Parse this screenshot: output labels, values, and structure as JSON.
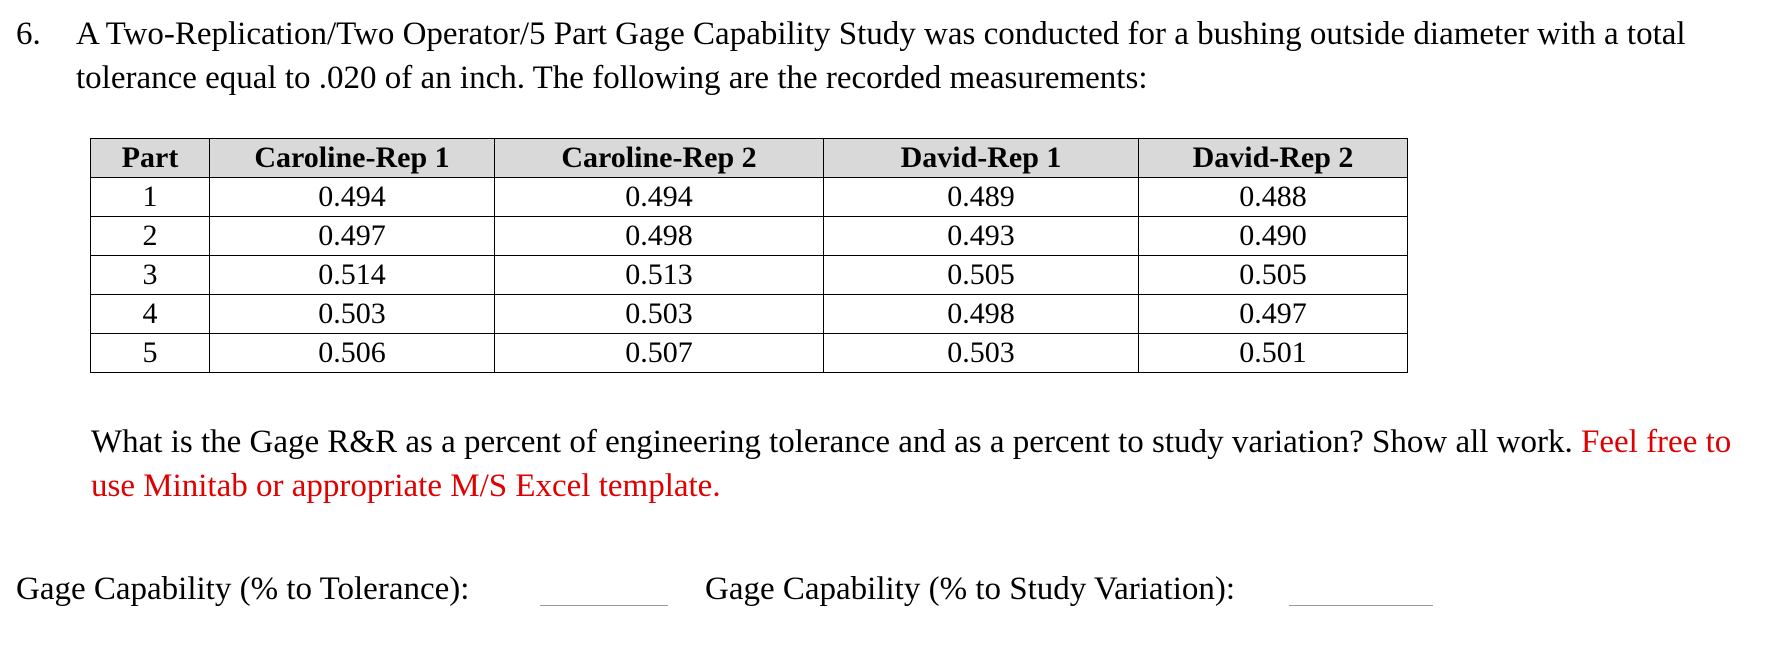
{
  "problem": {
    "number": "6.",
    "text": "A Two-Replication/Two Operator/5 Part Gage Capability Study was conducted for a bushing outside diameter with a total tolerance equal to .020 of an inch.  The following are the recorded measurements:"
  },
  "table": {
    "headers": [
      "Part",
      "Caroline-Rep 1",
      "Caroline-Rep 2",
      "David-Rep 1",
      "David-Rep 2"
    ],
    "rows": [
      [
        "1",
        "0.494",
        "0.494",
        "0.489",
        "0.488"
      ],
      [
        "2",
        "0.497",
        "0.498",
        "0.493",
        "0.490"
      ],
      [
        "3",
        "0.514",
        "0.513",
        "0.505",
        "0.505"
      ],
      [
        "4",
        "0.503",
        "0.503",
        "0.498",
        "0.497"
      ],
      [
        "5",
        "0.506",
        "0.507",
        "0.503",
        "0.501"
      ]
    ]
  },
  "question": {
    "text": "What is the Gage R&R as a percent of engineering tolerance and as a percent to study variation?  Show all work.  ",
    "highlight": "Feel free to use Minitab or appropriate M/S Excel template.",
    "highlight_color": "#e00000"
  },
  "answers": {
    "tolerance_label": "Gage Capability (% to Tolerance):",
    "study_label": "Gage Capability (% to Study Variation):"
  }
}
